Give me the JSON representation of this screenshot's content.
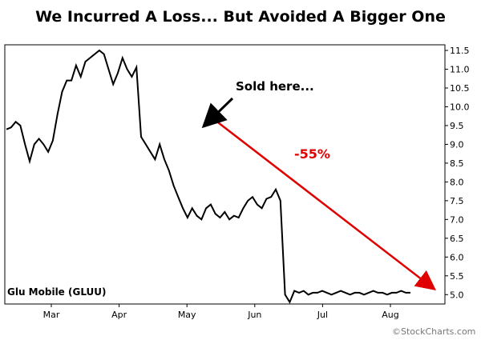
{
  "title": "We Incurred A Loss... But Avoided A Bigger One",
  "chart_data": {
    "type": "line",
    "series": [
      {
        "name": "Glu Mobile (GLUU)",
        "x": [
          0,
          2,
          4,
          6,
          8,
          10,
          12,
          14,
          16,
          18,
          20,
          22,
          24,
          26,
          28,
          30,
          32,
          34,
          36,
          38,
          40,
          42,
          44,
          46,
          48,
          50,
          52,
          54,
          56,
          58,
          60,
          62,
          64,
          66,
          68,
          70,
          72,
          74,
          76,
          78,
          80,
          82,
          84,
          86,
          88,
          90,
          92,
          94,
          96,
          98,
          100,
          102,
          104,
          106,
          108,
          110,
          112,
          114,
          116,
          118,
          120,
          122,
          124,
          126,
          128,
          130,
          132,
          134,
          136,
          138,
          140,
          142,
          144,
          146,
          148,
          150,
          152,
          154,
          156,
          158,
          160,
          162,
          164,
          166,
          168,
          170,
          172,
          174
        ],
        "values": [
          9.4,
          9.45,
          9.6,
          9.5,
          9.0,
          8.55,
          9.0,
          9.15,
          9.0,
          8.8,
          9.1,
          9.8,
          10.4,
          10.7,
          10.7,
          11.1,
          10.8,
          11.2,
          11.3,
          11.4,
          11.5,
          11.4,
          11.0,
          10.6,
          10.9,
          11.3,
          11.0,
          10.8,
          11.05,
          9.2,
          9.0,
          8.8,
          8.6,
          9.0,
          8.6,
          8.3,
          7.9,
          7.6,
          7.3,
          7.05,
          7.3,
          7.1,
          7.0,
          7.3,
          7.4,
          7.15,
          7.05,
          7.2,
          7.0,
          7.1,
          7.05,
          7.3,
          7.5,
          7.6,
          7.4,
          7.3,
          7.55,
          7.6,
          7.8,
          7.5,
          5.0,
          4.8,
          5.1,
          5.05,
          5.1,
          5.0,
          5.05,
          5.05,
          5.1,
          5.05,
          5.0,
          5.05,
          5.1,
          5.05,
          5.0,
          5.05,
          5.05,
          5.0,
          5.05,
          5.1,
          5.05,
          5.05,
          5.0,
          5.05,
          5.05,
          5.1,
          5.05,
          5.05
        ]
      }
    ],
    "x_ticks": [
      "Mar",
      "Apr",
      "May",
      "Jun",
      "Jul",
      "Aug"
    ],
    "y_ticks": [
      5.0,
      5.5,
      6.0,
      6.5,
      7.0,
      7.5,
      8.0,
      8.5,
      9.0,
      9.5,
      10.0,
      10.5,
      11.0,
      11.5
    ],
    "ylim": [
      4.75,
      11.65
    ],
    "grid": false,
    "annotations": {
      "callout": "Sold here...",
      "change": "-55%",
      "series_label": "Glu Mobile (GLUU)"
    },
    "source": "©StockCharts.com",
    "colors": {
      "price_line": "#000000",
      "trend_arrow": "#e00000"
    }
  }
}
